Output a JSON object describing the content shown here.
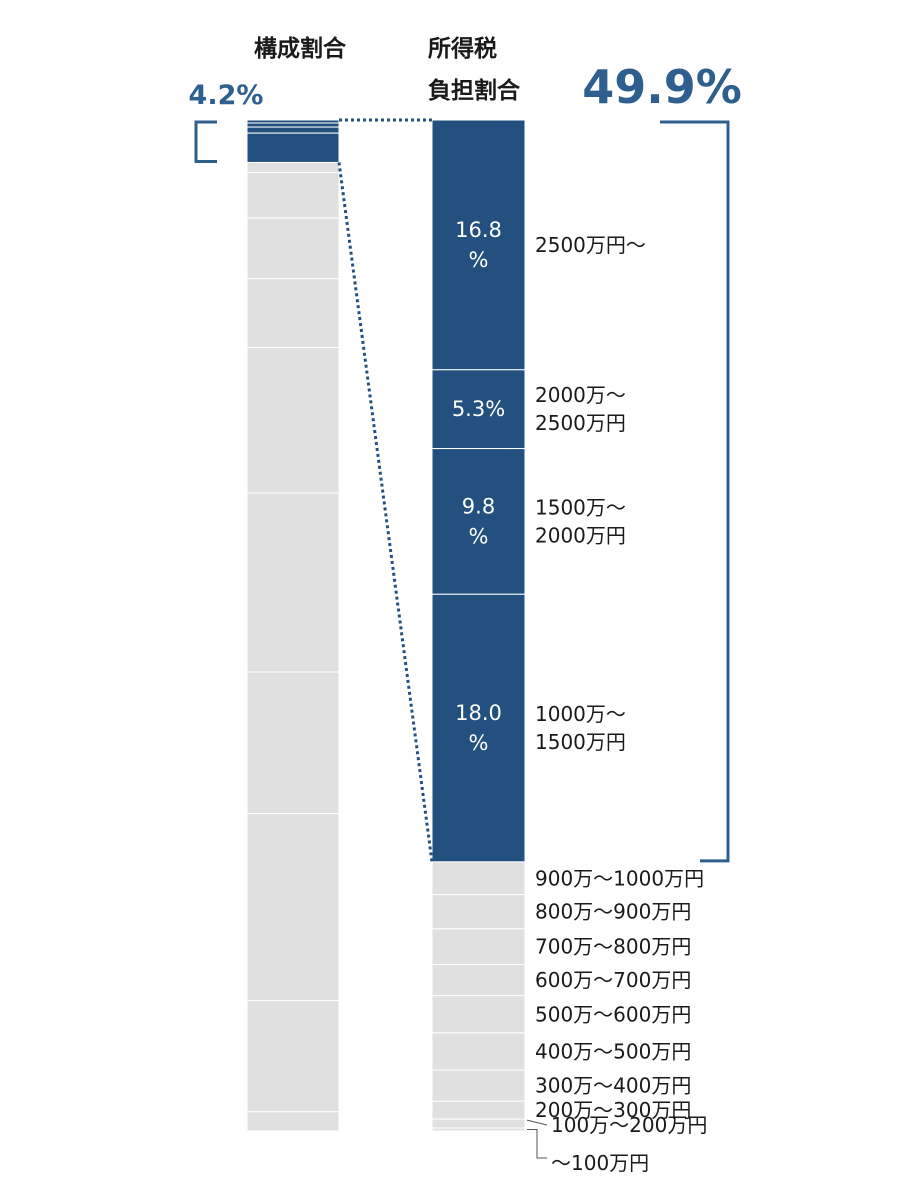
{
  "headers": {
    "composition": "構成割合",
    "tax_line1": "所得税",
    "tax_line2": "負担割合"
  },
  "highlight": {
    "composition_pct": "4.2%",
    "tax_pct": "49.9%"
  },
  "colors": {
    "highlight": "#23507e",
    "bar_gray": "#e0e0e0",
    "divider": "#ffffff",
    "accent": "#2f5f8f"
  },
  "chart_data": {
    "type": "stacked-bar",
    "stack_order": "top-to-bottom",
    "categories": [
      "2500万円〜",
      "2000万〜2500万円",
      "1500万〜2000万円",
      "1000万〜1500万円",
      "900万〜1000万円",
      "800万〜900万円",
      "700万〜800万円",
      "600万〜700万円",
      "500万〜600万円",
      "400万〜500万円",
      "300万〜400万円",
      "200万〜300万円",
      "100万〜200万円",
      "〜100万円"
    ],
    "category_labels": [
      [
        "2500万円〜"
      ],
      [
        "2000万〜",
        "2500万円"
      ],
      [
        "1500万〜",
        "2000万円"
      ],
      [
        "1000万〜",
        "1500万円"
      ],
      [
        "900万〜1000万円"
      ],
      [
        "800万〜900万円"
      ],
      [
        "700万〜800万円"
      ],
      [
        "600万〜700万円"
      ],
      [
        "500万〜600万円"
      ],
      [
        "400万〜500万円"
      ],
      [
        "300万〜400万円"
      ],
      [
        "200万〜300万円"
      ],
      [
        "100万〜200万円"
      ],
      [
        "〜100万円"
      ]
    ],
    "series": [
      {
        "name": "構成割合",
        "values": [
          0.3,
          0.4,
          0.6,
          2.9,
          1.0,
          4.5,
          6.0,
          6.8,
          14.4,
          17.7,
          14.0,
          18.5,
          11.0,
          1.9
        ]
      },
      {
        "name": "所得税負担割合",
        "values": [
          16.8,
          5.3,
          9.8,
          18.0,
          2.2,
          2.3,
          2.4,
          2.1,
          2.5,
          2.5,
          2.1,
          1.2,
          0.6,
          0.2
        ]
      }
    ],
    "tax_segment_labels": [
      [
        "16.8",
        "%"
      ],
      [
        "5.3%"
      ],
      [
        "9.8",
        "%"
      ],
      [
        "18.0",
        "%"
      ]
    ],
    "highlight_count": 4
  }
}
